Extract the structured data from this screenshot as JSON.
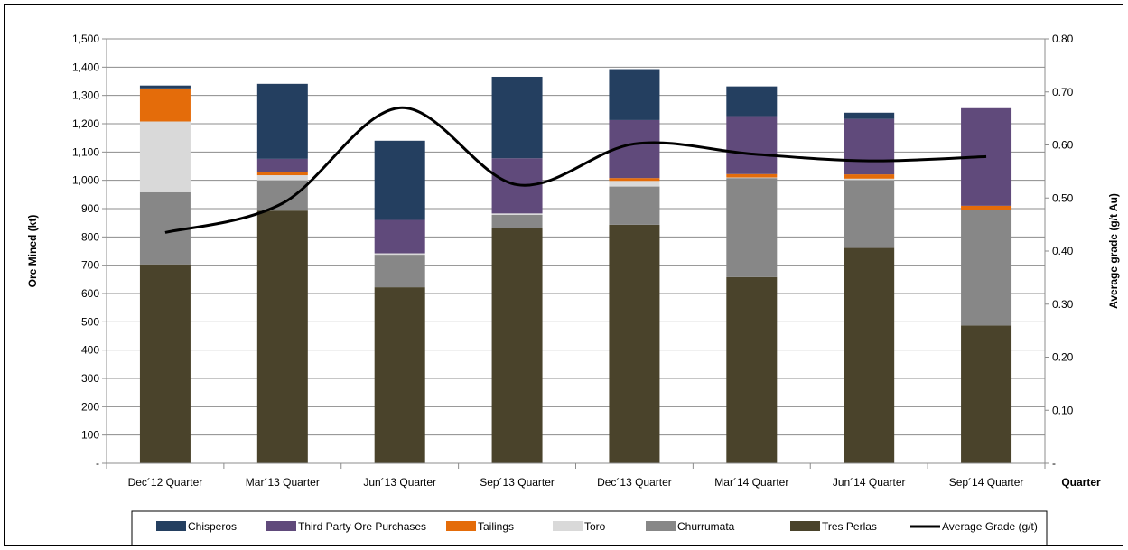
{
  "chart_data": {
    "type": "bar",
    "stacked": true,
    "categories": [
      "Dec´12 Quarter",
      "Mar´13 Quarter",
      "Jun´13 Quarter",
      "Sep´13 Quarter",
      "Dec´13 Quarter",
      "Mar´14 Quarter",
      "Jun´14 Quarter",
      "Sep´14 Quarter"
    ],
    "series": [
      {
        "name": "Tres Perlas",
        "color": "#4a432b",
        "values": [
          703,
          893,
          622,
          830,
          843,
          658,
          761,
          487
        ]
      },
      {
        "name": "Churrumata",
        "color": "#878787",
        "values": [
          255,
          107,
          115,
          48,
          135,
          350,
          240,
          408
        ]
      },
      {
        "name": "Toro",
        "color": "#d9d9d9",
        "values": [
          250,
          18,
          5,
          5,
          20,
          2,
          5,
          0
        ]
      },
      {
        "name": "Tailings",
        "color": "#e46c0a",
        "values": [
          117,
          10,
          0,
          0,
          10,
          12,
          15,
          15
        ]
      },
      {
        "name": "Third Party Ore Purchases",
        "color": "#604a7b",
        "values": [
          0,
          48,
          118,
          195,
          205,
          205,
          196,
          345
        ]
      },
      {
        "name": "Chisperos",
        "color": "#243f60",
        "values": [
          10,
          265,
          280,
          288,
          180,
          105,
          22,
          0
        ]
      }
    ],
    "line_series": {
      "name": "Average Grade (g/t)",
      "color": "#000000",
      "values": [
        0.435,
        0.49,
        0.67,
        0.525,
        0.602,
        0.583,
        0.57,
        0.578
      ]
    },
    "ylim": [
      0,
      1500
    ],
    "y_ticks": [
      "-",
      "100",
      "200",
      "300",
      "400",
      "500",
      "600",
      "700",
      "800",
      "900",
      "1,000",
      "1,100",
      "1,200",
      "1,300",
      "1,400",
      "1,500"
    ],
    "y2lim": [
      0,
      0.8
    ],
    "y2_ticks": [
      "-",
      "0.10",
      "0.20",
      "0.30",
      "0.40",
      "0.50",
      "0.60",
      "0.70",
      "0.80"
    ],
    "ylabel": "Ore Mined (kt)",
    "y2label": "Average grade (g/t Au)",
    "xlabel": "Quarter",
    "legend_order": [
      "Chisperos",
      "Third Party Ore Purchases",
      "Tailings",
      "Toro",
      "Churrumata",
      "Tres Perlas",
      "Average Grade (g/t)"
    ],
    "legend_position": "bottom",
    "grid": true
  }
}
